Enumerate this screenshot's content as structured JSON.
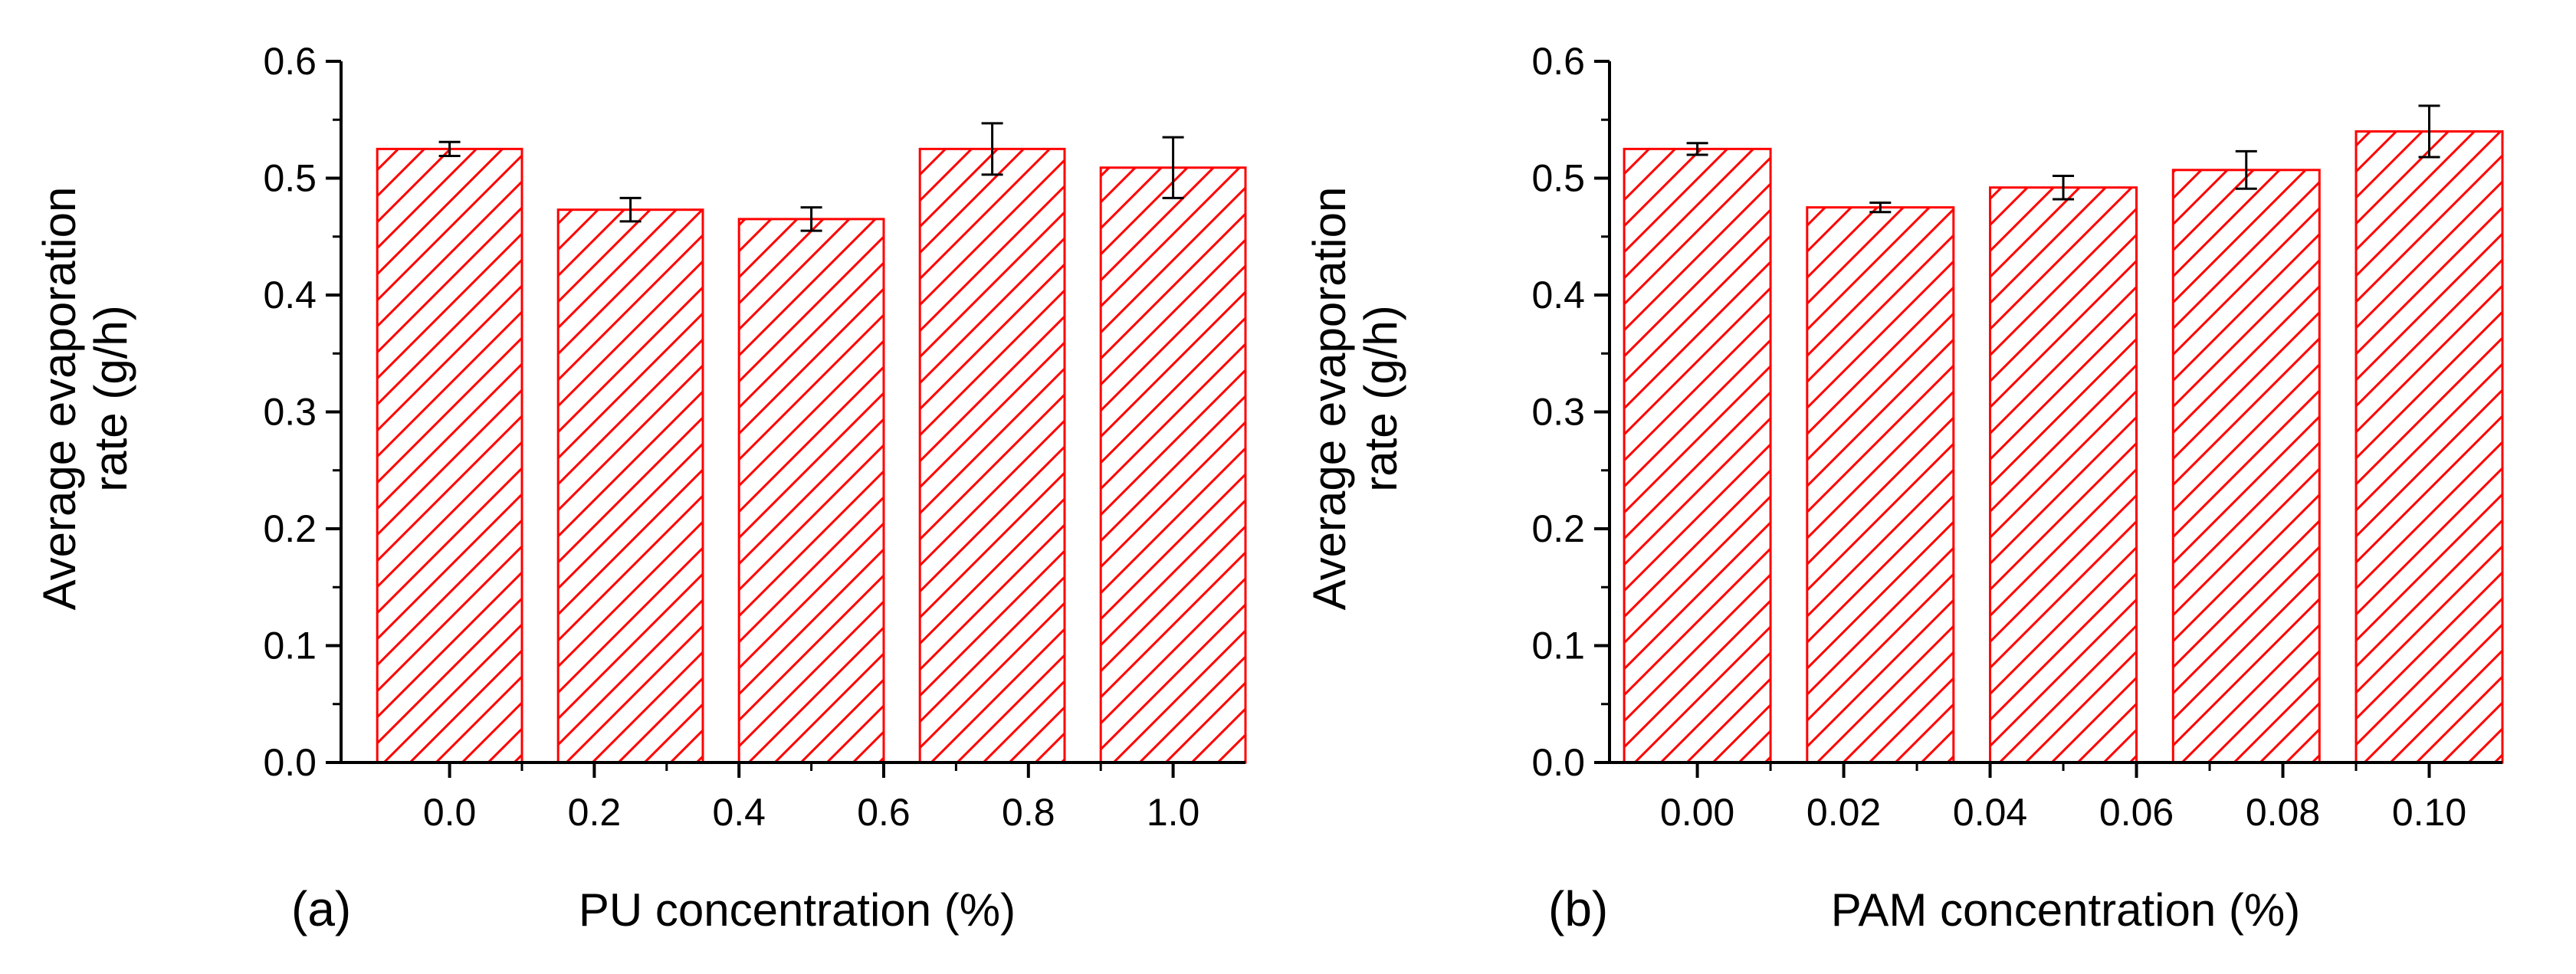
{
  "chart_data": [
    {
      "type": "bar",
      "panel_label": "(a)",
      "xlabel": "PU concentration (%)",
      "ylabel_line1": "Average evaporation",
      "ylabel_line2": "rate (g/h)",
      "x": [
        0.0,
        0.25,
        0.5,
        0.75,
        1.0
      ],
      "values": [
        0.525,
        0.473,
        0.465,
        0.525,
        0.509
      ],
      "errors": [
        0.006,
        0.01,
        0.01,
        0.022,
        0.026
      ],
      "xlim": [
        -0.15,
        1.1
      ],
      "ylim": [
        0.0,
        0.6
      ],
      "bar_width": 0.2,
      "xticks": [
        0.0,
        0.2,
        0.4,
        0.6,
        0.8,
        1.0
      ],
      "xtick_labels": [
        "0.0",
        "0.2",
        "0.4",
        "0.6",
        "0.8",
        "1.0"
      ],
      "yticks": [
        0.0,
        0.1,
        0.2,
        0.3,
        0.4,
        0.5,
        0.6
      ],
      "ytick_labels": [
        "0.0",
        "0.1",
        "0.2",
        "0.3",
        "0.4",
        "0.5",
        "0.6"
      ],
      "bar_color": "#ff0000",
      "fill": "diagonal-hatch"
    },
    {
      "type": "bar",
      "panel_label": "(b)",
      "xlabel": "PAM concentration (%)",
      "ylabel_line1": "Average evaporation",
      "ylabel_line2": "rate (g/h)",
      "x": [
        0.0,
        0.025,
        0.05,
        0.075,
        0.1
      ],
      "values": [
        0.525,
        0.475,
        0.492,
        0.507,
        0.54
      ],
      "errors": [
        0.005,
        0.004,
        0.01,
        0.016,
        0.022
      ],
      "xlim": [
        -0.012,
        0.11
      ],
      "ylim": [
        0.0,
        0.6
      ],
      "bar_width": 0.02,
      "xticks": [
        0.0,
        0.02,
        0.04,
        0.06,
        0.08,
        0.1
      ],
      "xtick_labels": [
        "0.00",
        "0.02",
        "0.04",
        "0.06",
        "0.08",
        "0.10"
      ],
      "yticks": [
        0.0,
        0.1,
        0.2,
        0.3,
        0.4,
        0.5,
        0.6
      ],
      "ytick_labels": [
        "0.0",
        "0.1",
        "0.2",
        "0.3",
        "0.4",
        "0.5",
        "0.6"
      ],
      "bar_color": "#ff0000",
      "fill": "diagonal-hatch"
    }
  ]
}
